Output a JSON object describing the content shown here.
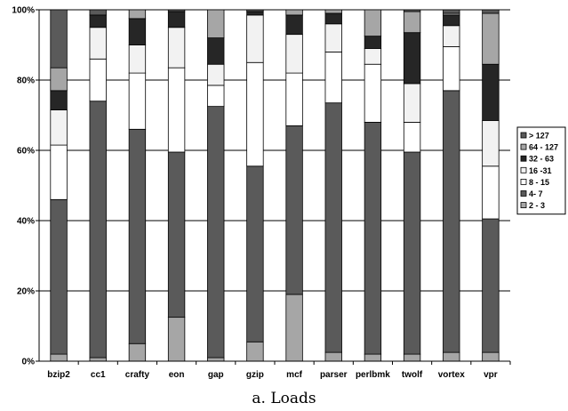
{
  "caption": "a. Loads",
  "chart_data": {
    "type": "bar",
    "stacked": true,
    "normalized_percent": true,
    "title": "",
    "xlabel": "",
    "ylabel": "",
    "ylim": [
      0,
      100
    ],
    "yticks": [
      "0%",
      "20%",
      "40%",
      "60%",
      "80%",
      "100%"
    ],
    "grid": true,
    "legend_position": "right",
    "categories": [
      "bzip2",
      "cc1",
      "crafty",
      "eon",
      "gap",
      "gzip",
      "mcf",
      "parser",
      "perlbmk",
      "twolf",
      "vortex",
      "vpr"
    ],
    "series": [
      {
        "name": "2 - 3",
        "color": "#a6a6a6",
        "values": [
          2,
          1,
          5,
          12.5,
          1,
          5.5,
          19,
          2.5,
          2,
          2,
          2.5,
          2.5
        ]
      },
      {
        "name": "4- 7",
        "color": "#5a5a5a",
        "values": [
          44,
          73,
          61,
          47,
          71.5,
          50,
          48,
          71,
          66,
          57.5,
          74.5,
          38
        ]
      },
      {
        "name": "8 - 15",
        "color": "#ffffff",
        "values": [
          15.5,
          12,
          16,
          24,
          6,
          29.5,
          15,
          14.5,
          16.5,
          8.5,
          12.5,
          15
        ]
      },
      {
        "name": "16 -31",
        "color": "#f2f2f2",
        "values": [
          10,
          9,
          8,
          11.5,
          6,
          13.5,
          11,
          8,
          4.5,
          11,
          6,
          13
        ]
      },
      {
        "name": "32 - 63",
        "color": "#262626",
        "values": [
          5.5,
          3.5,
          7.5,
          4.5,
          7.5,
          1,
          5.5,
          3,
          3.5,
          14.5,
          3,
          16
        ]
      },
      {
        "name": "64 - 127",
        "color": "#a6a6a6",
        "values": [
          6.5,
          0,
          2.5,
          0,
          8,
          0,
          1.5,
          1,
          7.5,
          6,
          0.5,
          14.5
        ]
      },
      {
        "name": "> 127",
        "color": "#5a5a5a",
        "values": [
          16.5,
          1.5,
          0,
          0.5,
          0,
          0.5,
          0,
          0,
          0,
          0.5,
          1,
          1
        ]
      }
    ]
  }
}
